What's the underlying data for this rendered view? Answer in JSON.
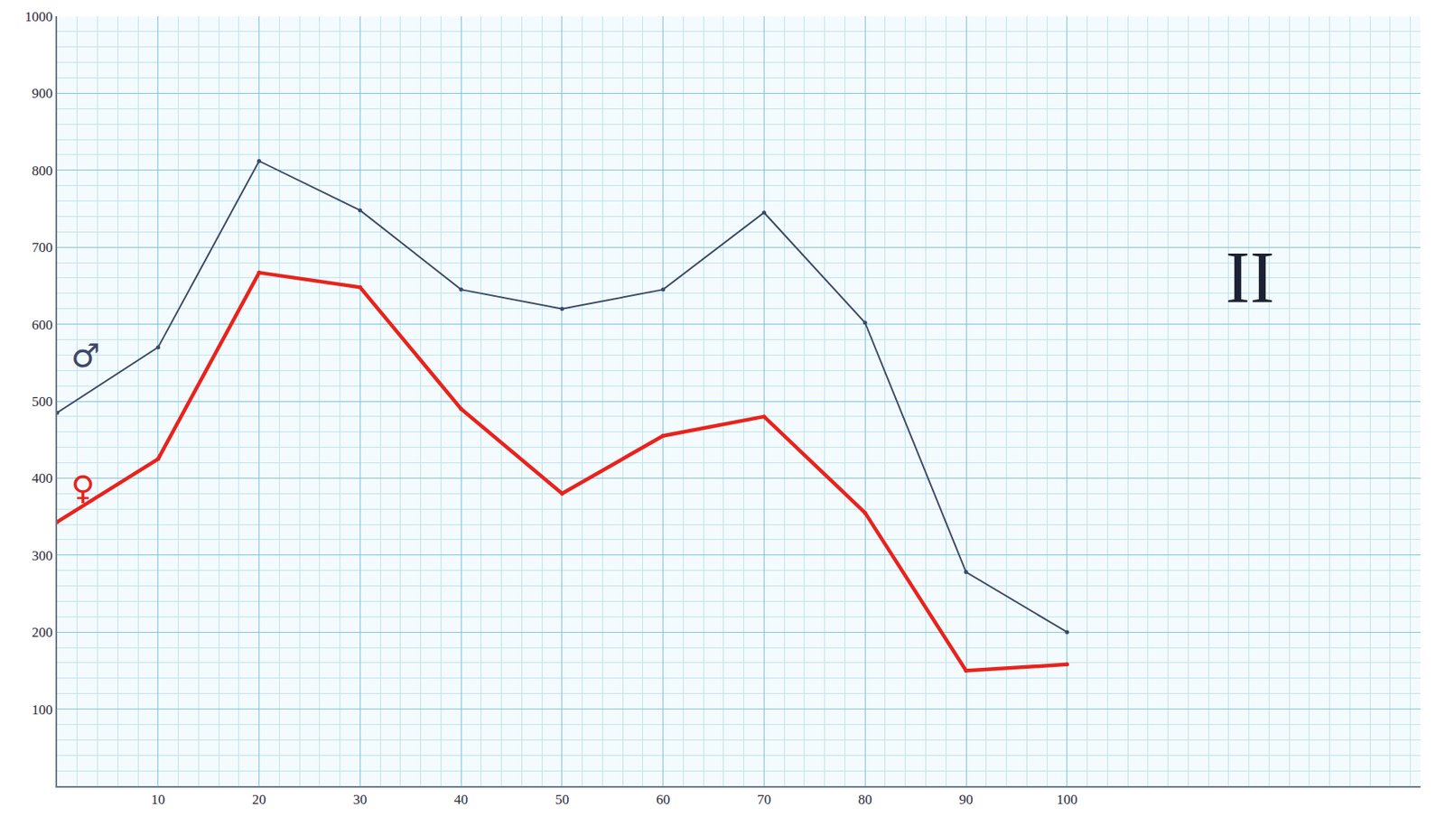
{
  "chart_data": {
    "type": "line",
    "x": [
      0,
      10,
      20,
      30,
      40,
      50,
      60,
      70,
      80,
      90,
      100
    ],
    "series": [
      {
        "name": "♂",
        "color": "#3b4a66",
        "values": [
          485,
          570,
          812,
          748,
          645,
          620,
          645,
          745,
          602,
          278,
          200
        ]
      },
      {
        "name": "♀",
        "color": "#e8231c",
        "values": [
          343,
          425,
          667,
          648,
          490,
          380,
          455,
          480,
          355,
          150,
          158
        ]
      }
    ],
    "xlim": [
      0,
      135
    ],
    "xticks": [
      10,
      20,
      30,
      40,
      50,
      60,
      70,
      80,
      90,
      100
    ],
    "ylim": [
      0,
      1000
    ],
    "yticks": [
      100,
      200,
      300,
      400,
      500,
      600,
      700,
      800,
      900,
      1000
    ],
    "grid": true,
    "annotations": [
      {
        "text": "II"
      }
    ]
  }
}
